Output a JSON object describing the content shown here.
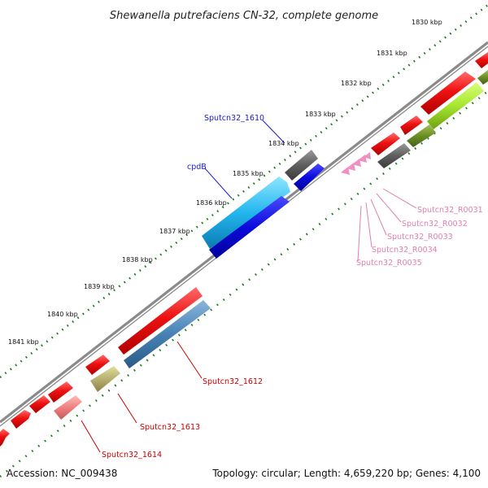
{
  "title": "Shewanella putrefaciens CN-32, complete genome",
  "footer": {
    "accession": "Accession: NC_009438",
    "info": "Topology: circular; Length: 4,659,220 bp; Genes: 4,100"
  },
  "ruler": {
    "unit": "kbp",
    "labels": [
      "1830 kbp",
      "1831 kbp",
      "1832 kbp",
      "1833 kbp",
      "1834 kbp",
      "1835 kbp",
      "1836 kbp",
      "1837 kbp",
      "1838 kbp",
      "1839 kbp",
      "1840 kbp",
      "1841 kbp"
    ]
  },
  "legend_colors": {
    "cds_red": "#ee1111",
    "backbone": "#8a8a8a",
    "tick_green": "#1a7a1a",
    "trna_pink": "#f090c0",
    "label_red": "#cc0000",
    "label_blue": "#1a1acc",
    "label_pink": "#e080b0"
  },
  "gene_labels": {
    "sputcn32_1610": "Sputcn32_1610",
    "cpdb": "cpdB",
    "sputcn32_1612": "Sputcn32_1612",
    "sputcn32_1613": "Sputcn32_1613",
    "sputcn32_1614": "Sputcn32_1614",
    "sputcn32_r0031": "Sputcn32_R0031",
    "sputcn32_r0032": "Sputcn32_R0032",
    "sputcn32_r0033": "Sputcn32_R0033",
    "sputcn32_r0034": "Sputcn32_R0034",
    "sputcn32_r0035": "Sputcn32_R0035"
  }
}
